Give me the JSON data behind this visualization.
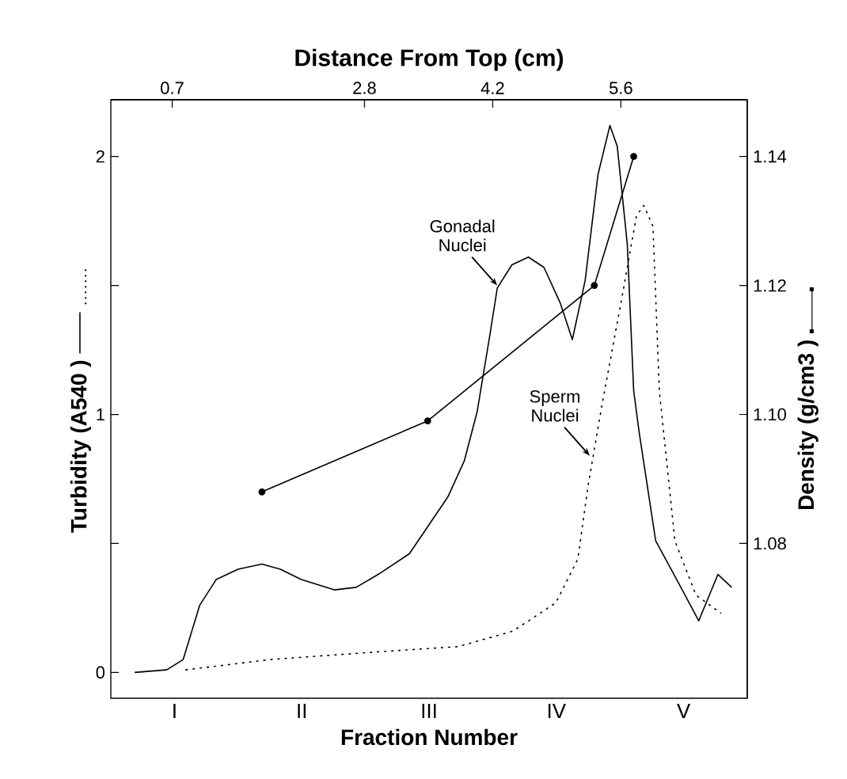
{
  "chart_data": {
    "type": "line",
    "xlabel": "Fraction Number",
    "x2label": "Distance From Top (cm)",
    "ylabel": "Turbidity (A540 )",
    "y2label": "Density (g/cm3 )",
    "xlim": [
      0.03,
      6.98
    ],
    "xticks": [
      0.7,
      2.8,
      4.2,
      5.6
    ],
    "ylim": [
      -0.1,
      2.22
    ],
    "yticks": [
      0,
      {
        "value": 0.5,
        "label": null
      },
      1,
      {
        "value": 1.5,
        "label": null
      },
      2
    ],
    "y2lim": [
      1.056,
      1.1488
    ],
    "y2ticks": [
      1.08,
      {
        "value": 1.1,
        "label": "1.10"
      },
      1.12,
      1.14
    ],
    "grid": false,
    "marker": "none",
    "series": [
      {
        "color": "#000000",
        "line_style": "solid",
        "x": [
          0.29,
          0.64,
          0.82,
          1.0,
          1.18,
          1.42,
          1.68,
          1.88,
          2.11,
          2.47,
          2.71,
          2.95,
          3.29,
          3.5,
          3.71,
          3.89,
          4.03,
          4.17,
          4.25,
          4.41,
          4.59,
          4.76,
          4.94,
          5.07,
          5.21,
          5.35,
          5.48,
          5.56,
          5.67,
          5.74,
          5.8,
          5.98,
          6.24,
          6.45,
          6.66,
          6.81
        ],
        "values": [
          0.0,
          0.01,
          0.05,
          0.26,
          0.36,
          0.4,
          0.42,
          0.4,
          0.36,
          0.32,
          0.33,
          0.38,
          0.46,
          0.57,
          0.68,
          0.82,
          1.01,
          1.31,
          1.49,
          1.58,
          1.61,
          1.57,
          1.43,
          1.29,
          1.52,
          1.93,
          2.12,
          2.04,
          1.66,
          1.09,
          0.93,
          0.51,
          0.34,
          0.2,
          0.38,
          0.33
        ]
      },
      {
        "color": "#000000",
        "line_style": "dotted",
        "x": [
          0.85,
          1.77,
          2.95,
          3.82,
          4.42,
          4.89,
          5.13,
          5.24,
          5.39,
          5.62,
          5.77,
          5.85,
          5.95,
          6.02,
          6.19,
          6.42,
          6.69
        ],
        "values": [
          0.01,
          0.05,
          0.08,
          0.1,
          0.16,
          0.27,
          0.44,
          0.72,
          1.03,
          1.47,
          1.77,
          1.81,
          1.73,
          1.09,
          0.51,
          0.3,
          0.23
        ]
      },
      {
        "color": "#000000",
        "line_style": "solid",
        "axis": "y2",
        "marker": "circle",
        "x": [
          1.68,
          3.49,
          5.31,
          5.74
        ],
        "values": [
          1.088,
          1.099,
          1.12,
          1.14
        ]
      }
    ],
    "annotations": [
      {
        "text": "Gonadal Nuclei",
        "x": 4.25,
        "y": 1.5
      },
      {
        "text": "Sperm Nuclei",
        "x": 5.26,
        "y": 0.84
      },
      "I",
      "II",
      "III",
      "IV",
      "V"
    ]
  }
}
